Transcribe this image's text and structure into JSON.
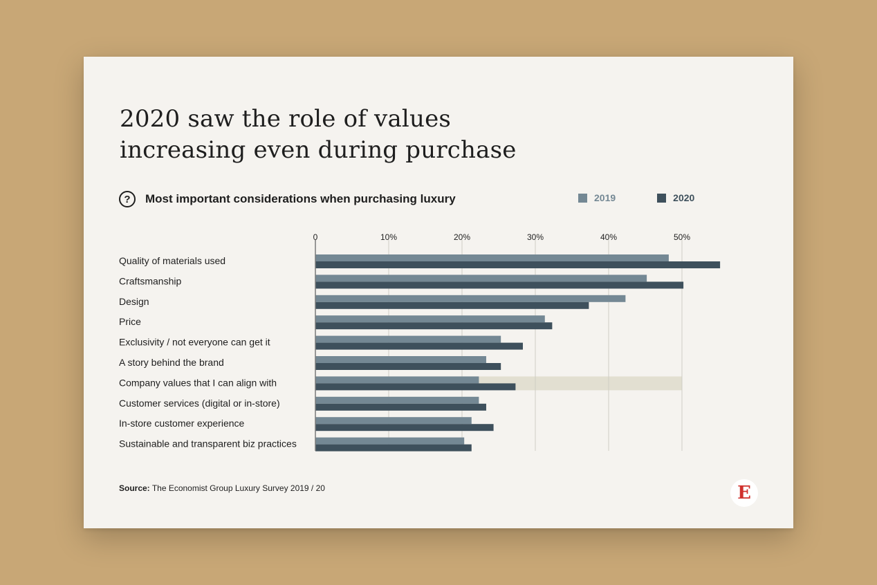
{
  "header": {
    "title_line1": "2020 saw the role of values",
    "title_line2": "increasing even during purchase"
  },
  "subtitle": "Most important considerations when purchasing luxury",
  "source_label": "Source:",
  "source_text": "The Economist Group Luxury Survey 2019 / 20",
  "logo_letter": "E",
  "colors": {
    "background": "#c8a776",
    "card": "#f5f3ef",
    "series_2019": "#748894",
    "series_2020": "#3e505c",
    "highlight": "#e2dfd1",
    "grid": "#cfccc4"
  },
  "chart_data": {
    "type": "bar",
    "orientation": "horizontal",
    "categories": [
      "Quality of materials used",
      "Craftsmanship",
      "Design",
      "Price",
      "Exclusivity / not everyone can get it",
      "A story behind the brand",
      "Company values that I can align with",
      "Customer services (digital or in-store)",
      "In-store customer experience",
      "Sustainable and transparent biz practices"
    ],
    "series": [
      {
        "name": "2019",
        "values": [
          48.2,
          45.2,
          42.3,
          31.3,
          25.3,
          23.3,
          22.3,
          22.3,
          21.3,
          20.3
        ]
      },
      {
        "name": "2020",
        "values": [
          55.2,
          50.2,
          37.3,
          32.3,
          28.3,
          25.3,
          27.3,
          23.3,
          24.3,
          21.3
        ]
      }
    ],
    "x_ticks": [
      "0",
      "10%",
      "20%",
      "30%",
      "40%",
      "50%"
    ],
    "xlim": [
      0,
      55
    ],
    "grid": true,
    "legend_position": "top-right",
    "highlighted_category": "Company values that I can align with"
  }
}
